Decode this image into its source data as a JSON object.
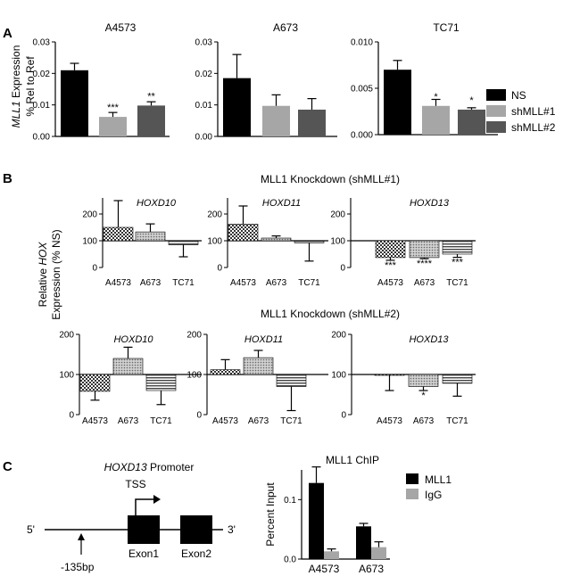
{
  "panel_labels": {
    "A": "A",
    "B": "B",
    "C": "C"
  },
  "panel_a": {
    "ylabel_italic": "MLL1",
    "ylabel_rest": " Expression",
    "ylabel_line2": "% Rel to Ref",
    "legend": [
      {
        "label": "NS",
        "color": "#000000"
      },
      {
        "label": "shMLL#1",
        "color": "#a6a6a6"
      },
      {
        "label": "shMLL#2",
        "color": "#555555"
      }
    ]
  },
  "panel_b": {
    "title_sh1": "MLL1 Knockdown (shMLL#1)",
    "title_sh2": "MLL1 Knockdown (shMLL#2)",
    "ylabel_line1": "Relative ",
    "ylabel_italic": "HOX",
    "ylabel_line2": "Expression (% NS)"
  },
  "panel_c": {
    "promoter_italic": "HOXD13",
    "promoter_rest": " Promoter",
    "tss": "TSS",
    "five_prime": "5'",
    "three_prime": "3'",
    "exon1": "Exon1",
    "exon2": "Exon2",
    "site": "-135bp",
    "legend": [
      {
        "label": "MLL1",
        "color": "#000000"
      },
      {
        "label": "IgG",
        "color": "#a6a6a6"
      }
    ]
  },
  "chart_data": [
    {
      "type": "bar",
      "title": "A4573",
      "categories": [
        "NS",
        "shMLL#1",
        "shMLL#2"
      ],
      "values": [
        0.021,
        0.0062,
        0.0098
      ],
      "errors": [
        0.0022,
        0.0014,
        0.0012
      ],
      "significance": [
        "",
        "***",
        "**"
      ],
      "ylim": [
        0,
        0.03
      ],
      "yticks": [
        "0.00",
        "0.01",
        "0.02",
        "0.03"
      ]
    },
    {
      "type": "bar",
      "title": "A673",
      "categories": [
        "NS",
        "shMLL#1",
        "shMLL#2"
      ],
      "values": [
        0.0185,
        0.0097,
        0.0085
      ],
      "errors": [
        0.0075,
        0.0035,
        0.0035
      ],
      "significance": [
        "",
        "",
        ""
      ],
      "ylim": [
        0,
        0.03
      ],
      "yticks": [
        "0.00",
        "0.01",
        "0.02",
        "0.03"
      ]
    },
    {
      "type": "bar",
      "title": "TC71",
      "categories": [
        "NS",
        "shMLL#1",
        "shMLL#2"
      ],
      "values": [
        0.007,
        0.0031,
        0.0027
      ],
      "errors": [
        0.001,
        0.0007,
        0.0002
      ],
      "significance": [
        "",
        "*",
        "*"
      ],
      "ylim": [
        0,
        0.01
      ],
      "yticks": [
        "0.000",
        "0.005",
        "0.010"
      ]
    },
    {
      "type": "bar",
      "title": "HOXD10",
      "knockdown": "shMLL#1",
      "categories": [
        "A4573",
        "A673",
        "TC71"
      ],
      "values": [
        150,
        133,
        85
      ],
      "errors": [
        100,
        30,
        45
      ],
      "significance": [
        "",
        "",
        ""
      ],
      "baseline": 100,
      "ylim": [
        0,
        250
      ],
      "yticks": [
        "0",
        "100",
        "200"
      ]
    },
    {
      "type": "bar",
      "title": "HOXD11",
      "knockdown": "shMLL#1",
      "categories": [
        "A4573",
        "A673",
        "TC71"
      ],
      "values": [
        162,
        110,
        92
      ],
      "errors": [
        68,
        8,
        68
      ],
      "significance": [
        "",
        "",
        ""
      ],
      "baseline": 100,
      "ylim": [
        0,
        250
      ],
      "yticks": [
        "0",
        "100",
        "200"
      ]
    },
    {
      "type": "bar",
      "title": "HOXD13",
      "knockdown": "shMLL#1",
      "categories": [
        "A4573",
        "A673",
        "TC71"
      ],
      "values": [
        37,
        37,
        50
      ],
      "errors": [
        10,
        4,
        12
      ],
      "significance": [
        "***",
        "****",
        "***"
      ],
      "baseline": 100,
      "ylim": [
        0,
        250
      ],
      "yticks": [
        "0",
        "100",
        "200"
      ]
    },
    {
      "type": "bar",
      "title": "HOXD10",
      "knockdown": "shMLL#2",
      "categories": [
        "A4573",
        "A673",
        "TC71"
      ],
      "values": [
        58,
        140,
        60
      ],
      "errors": [
        22,
        28,
        35
      ],
      "significance": [
        "",
        "",
        ""
      ],
      "baseline": 100,
      "ylim": [
        0,
        200
      ],
      "yticks": [
        "0",
        "100",
        "200"
      ]
    },
    {
      "type": "bar",
      "title": "HOXD11",
      "knockdown": "shMLL#2",
      "categories": [
        "A4573",
        "A673",
        "TC71"
      ],
      "values": [
        112,
        142,
        70
      ],
      "errors": [
        25,
        18,
        60
      ],
      "significance": [
        "",
        "",
        ""
      ],
      "baseline": 100,
      "ylim": [
        0,
        200
      ],
      "yticks": [
        "0",
        "100",
        "200"
      ]
    },
    {
      "type": "bar",
      "title": "HOXD13",
      "knockdown": "shMLL#2",
      "categories": [
        "A4573",
        "A673",
        "TC71"
      ],
      "values": [
        98,
        70,
        78
      ],
      "errors": [
        38,
        10,
        32
      ],
      "significance": [
        "",
        "*",
        ""
      ],
      "baseline": 100,
      "ylim": [
        0,
        200
      ],
      "yticks": [
        "0",
        "100",
        "200"
      ]
    },
    {
      "type": "bar",
      "title": "MLL1 ChIP",
      "ylabel": "Percent Input",
      "categories": [
        "A4573",
        "A673"
      ],
      "series": [
        {
          "name": "MLL1",
          "values": [
            0.128,
            0.055
          ],
          "errors": [
            0.027,
            0.005
          ]
        },
        {
          "name": "IgG",
          "values": [
            0.013,
            0.02
          ],
          "errors": [
            0.004,
            0.009
          ]
        }
      ],
      "ylim": [
        0,
        0.15
      ],
      "yticks": [
        "0.0",
        "0.1"
      ]
    }
  ]
}
